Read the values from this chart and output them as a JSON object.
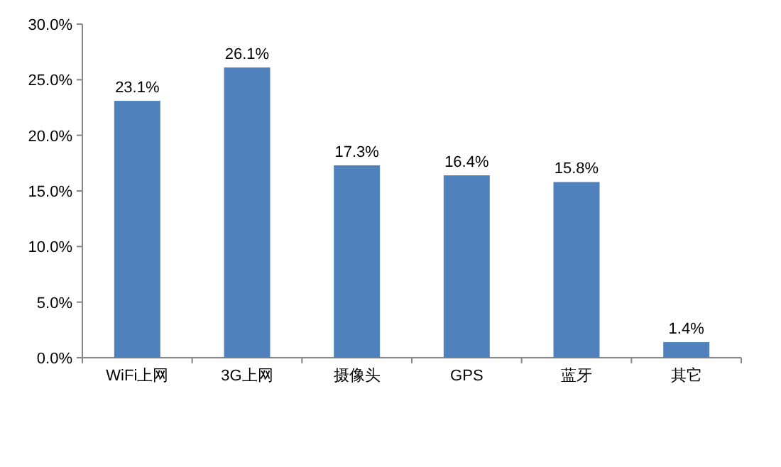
{
  "chart_data": {
    "type": "bar",
    "categories": [
      "WiFi上网",
      "3G上网",
      "摄像头",
      "GPS",
      "蓝牙",
      "其它"
    ],
    "values": [
      23.1,
      26.1,
      17.3,
      16.4,
      15.8,
      1.4
    ],
    "value_labels": [
      "23.1%",
      "26.1%",
      "17.3%",
      "16.4%",
      "15.8%",
      "1.4%"
    ],
    "color": "#4f81bd",
    "ylim": [
      0,
      30
    ],
    "yticks": [
      {
        "value": 0,
        "label": "0.0%"
      },
      {
        "value": 5,
        "label": "5.0%"
      },
      {
        "value": 10,
        "label": "10.0%"
      },
      {
        "value": 15,
        "label": "15.0%"
      },
      {
        "value": 20,
        "label": "20.0%"
      },
      {
        "value": 25,
        "label": "25.0%"
      },
      {
        "value": 30,
        "label": "30.0%"
      }
    ]
  }
}
